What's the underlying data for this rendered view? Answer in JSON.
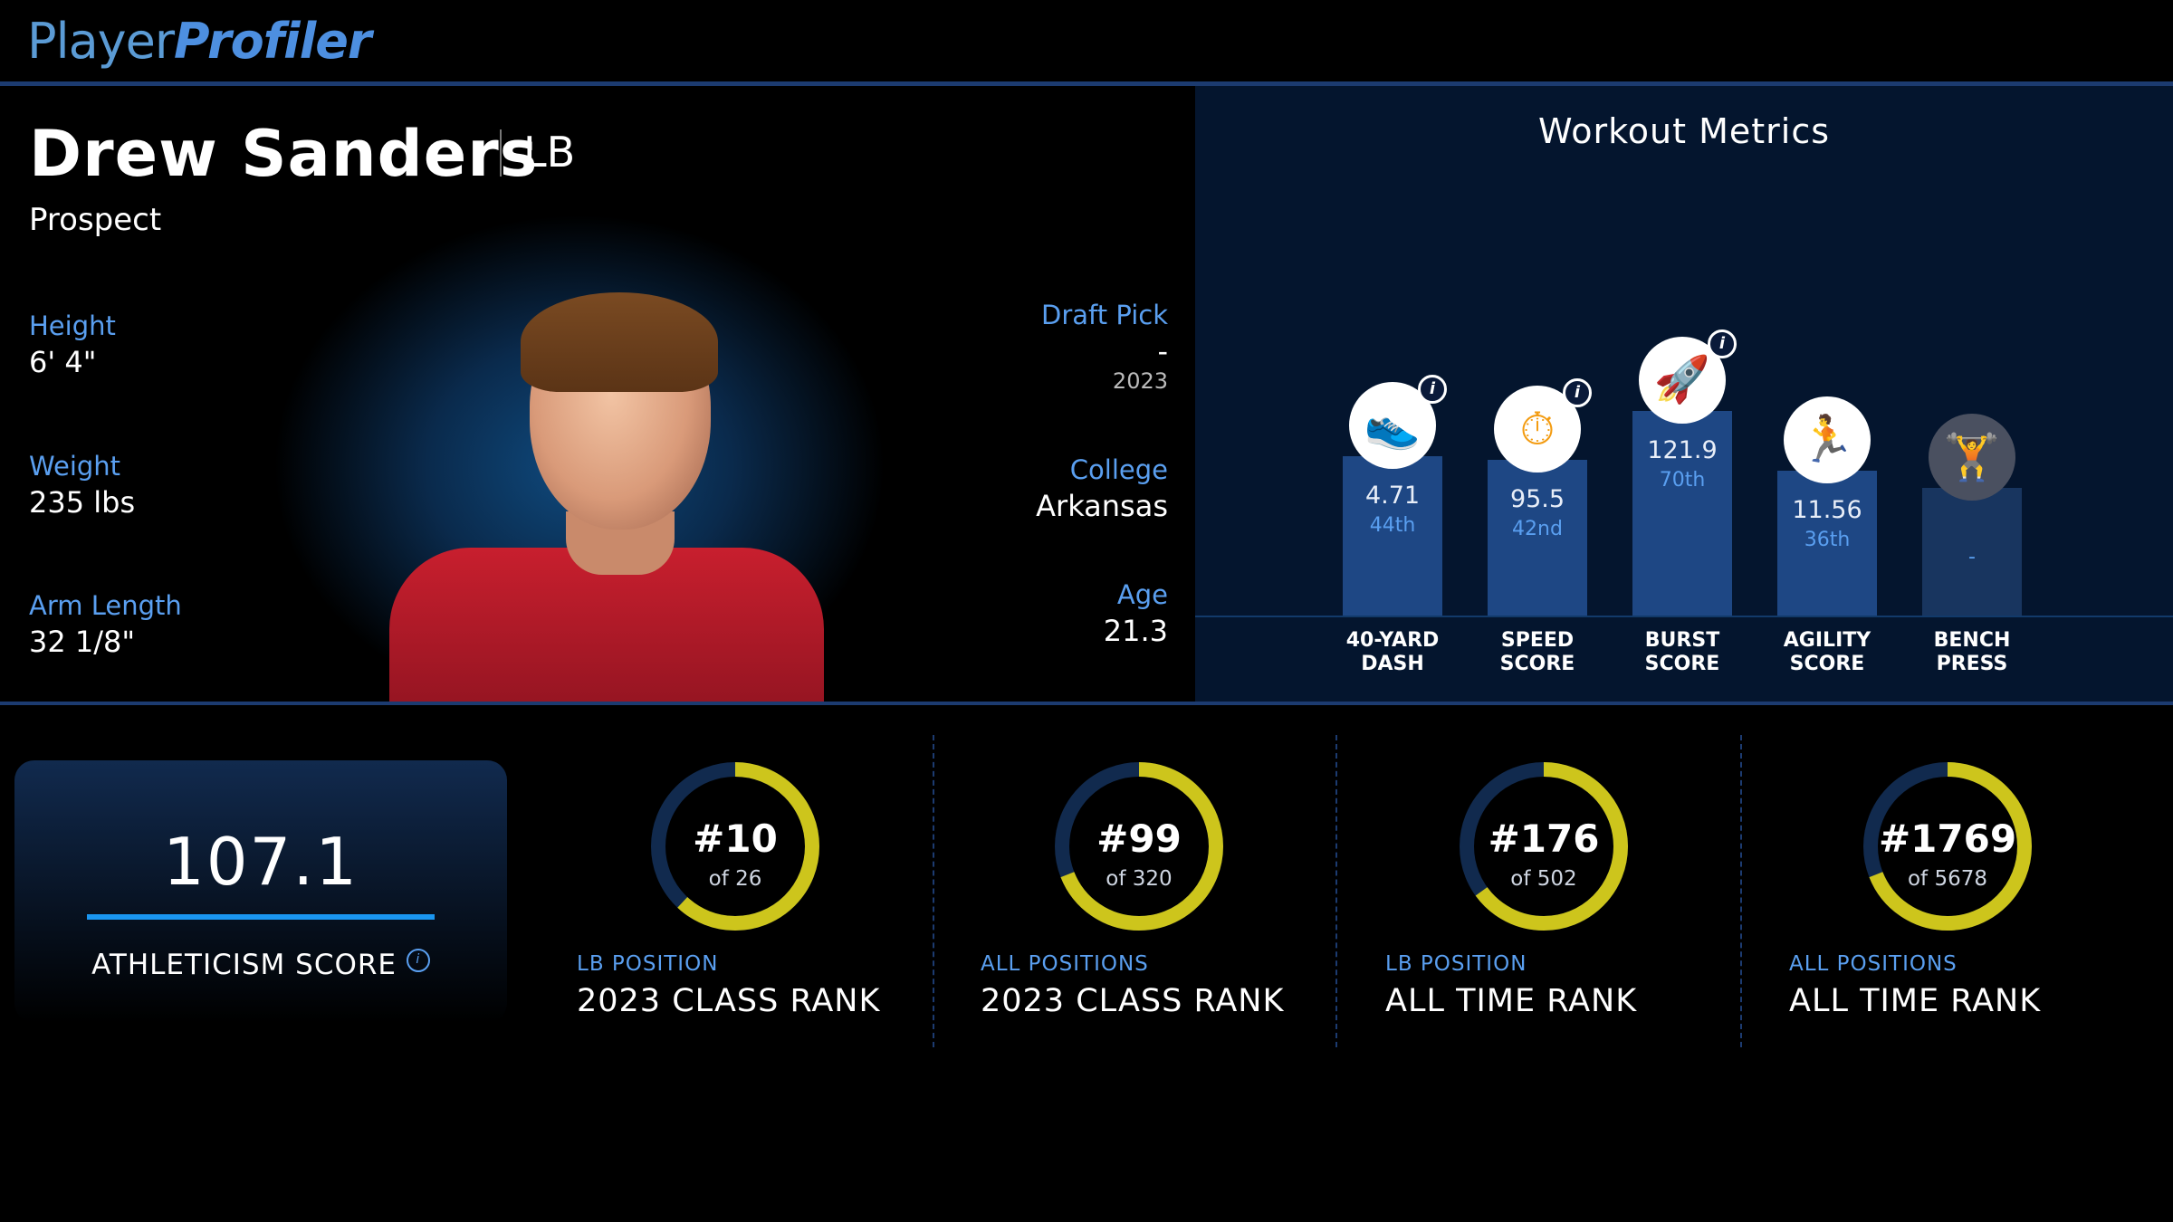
{
  "header": {
    "logo_part1": "Player",
    "logo_part2": "Profiler"
  },
  "player": {
    "name": "Drew Sanders",
    "position": "LB",
    "status": "Prospect",
    "left_stats": [
      {
        "label": "Height",
        "value": "6' 4\""
      },
      {
        "label": "Weight",
        "value": "235 lbs"
      },
      {
        "label": "Arm Length",
        "value": "32 1/8\""
      }
    ],
    "right_stats": {
      "draft_pick_label": "Draft Pick",
      "draft_pick_value": "-",
      "draft_year": "2023",
      "college_label": "College",
      "college_value": "Arkansas",
      "age_label": "Age",
      "age_value": "21.3"
    }
  },
  "workout": {
    "title": "Workout Metrics",
    "metrics": [
      {
        "label_line1": "40-YARD",
        "label_line2": "DASH",
        "value": "4.71",
        "percentile": "44th",
        "percentile_num": 44,
        "icon": "shoe-icon",
        "has_info": true
      },
      {
        "label_line1": "SPEED",
        "label_line2": "SCORE",
        "value": "95.5",
        "percentile": "42nd",
        "percentile_num": 42,
        "icon": "stopwatch-icon",
        "has_info": true
      },
      {
        "label_line1": "BURST",
        "label_line2": "SCORE",
        "value": "121.9",
        "percentile": "70th",
        "percentile_num": 70,
        "icon": "rocket-icon",
        "has_info": true
      },
      {
        "label_line1": "AGILITY",
        "label_line2": "SCORE",
        "value": "11.56",
        "percentile": "36th",
        "percentile_num": 36,
        "icon": "runner-icon",
        "has_info": false
      },
      {
        "label_line1": "BENCH",
        "label_line2": "PRESS",
        "value": "",
        "percentile": "-",
        "percentile_num": 26,
        "icon": "dumbbell-icon",
        "has_info": false
      }
    ]
  },
  "athleticism": {
    "score": "107.1",
    "label": "ATHLETICISM SCORE",
    "info": "i"
  },
  "ranks": [
    {
      "rank": "#10",
      "of": "of 26",
      "sub": "LB POSITION",
      "main": "2023 CLASS RANK",
      "fraction": 0.62
    },
    {
      "rank": "#99",
      "of": "of 320",
      "sub": "ALL POSITIONS",
      "main": "2023 CLASS RANK",
      "fraction": 0.69
    },
    {
      "rank": "#176",
      "of": "of 502",
      "sub": "LB POSITION",
      "main": "ALL TIME RANK",
      "fraction": 0.65
    },
    {
      "rank": "#1769",
      "of": "of 5678",
      "sub": "ALL POSITIONS",
      "main": "ALL TIME RANK",
      "fraction": 0.69
    }
  ],
  "colors": {
    "accent_blue": "#5a9ff0",
    "ring_yellow": "#cdc51c",
    "ring_track": "#112a4e",
    "orange_icon": "#f39c12"
  }
}
